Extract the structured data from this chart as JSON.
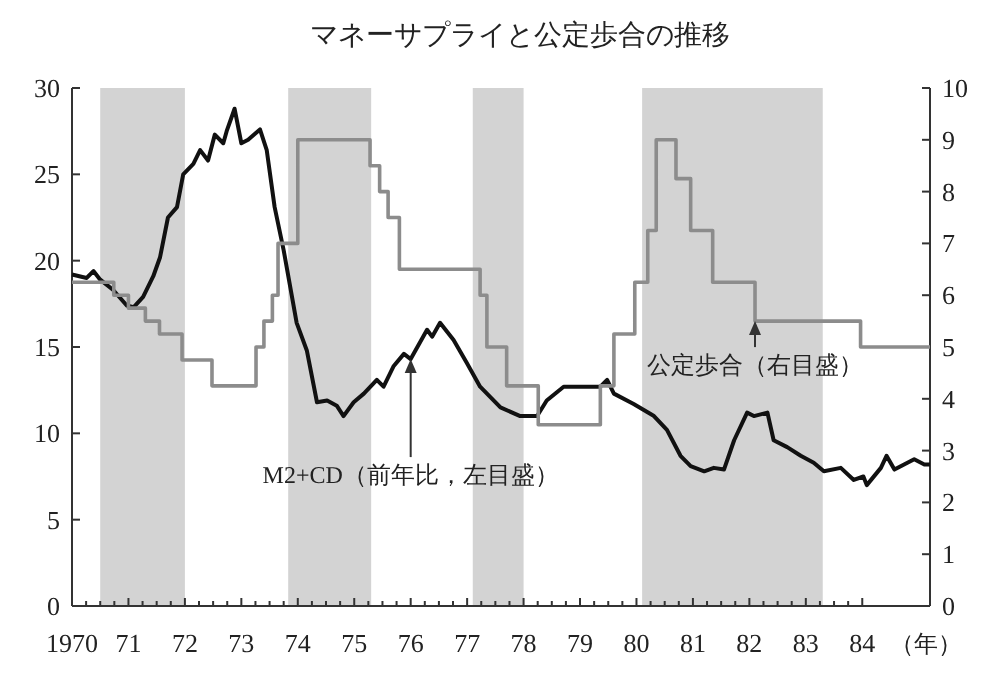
{
  "chart_data": {
    "type": "line",
    "title": "マネーサプライと公定歩合の推移",
    "xlabel": "（年）",
    "xlim": [
      1970,
      1985.2
    ],
    "xticks": [
      {
        "value": 1970,
        "label": "1970"
      },
      {
        "value": 1971,
        "label": "71"
      },
      {
        "value": 1972,
        "label": "72"
      },
      {
        "value": 1973,
        "label": "73"
      },
      {
        "value": 1974,
        "label": "74"
      },
      {
        "value": 1975,
        "label": "75"
      },
      {
        "value": 1976,
        "label": "76"
      },
      {
        "value": 1977,
        "label": "77"
      },
      {
        "value": 1978,
        "label": "78"
      },
      {
        "value": 1979,
        "label": "79"
      },
      {
        "value": 1980,
        "label": "80"
      },
      {
        "value": 1981,
        "label": "81"
      },
      {
        "value": 1982,
        "label": "82"
      },
      {
        "value": 1983,
        "label": "83"
      },
      {
        "value": 1984,
        "label": "84"
      }
    ],
    "ylim": [
      0,
      30
    ],
    "yticks": [
      0,
      5,
      10,
      15,
      20,
      25,
      30
    ],
    "y2lim": [
      0,
      10
    ],
    "y2ticks": [
      0,
      1,
      2,
      3,
      4,
      5,
      6,
      7,
      8,
      9,
      10
    ],
    "series": [
      {
        "color": "#111111",
        "x": [
          1970.0,
          1970.26,
          1970.38,
          1970.5,
          1970.73,
          1970.97,
          1971.09,
          1971.26,
          1971.44,
          1971.56,
          1971.7,
          1971.86,
          1971.97,
          1972.15,
          1972.27,
          1972.41,
          1972.53,
          1972.68,
          1972.74,
          1972.88,
          1973.0,
          1973.12,
          1973.33,
          1973.45,
          1973.59,
          1973.75,
          1973.98,
          1974.16,
          1974.34,
          1974.52,
          1974.69,
          1974.81,
          1974.99,
          1975.17,
          1975.4,
          1975.52,
          1975.7,
          1975.88,
          1976.0,
          1976.29,
          1976.38,
          1976.52,
          1976.76,
          1976.99,
          1977.23,
          1977.59,
          1977.94,
          1978.24,
          1978.41,
          1978.71,
          1979.0,
          1979.36,
          1979.48,
          1979.6,
          1979.95,
          1980.31,
          1980.54,
          1980.78,
          1980.96,
          1981.2,
          1981.37,
          1981.55,
          1981.73,
          1981.96,
          1982.08,
          1982.32,
          1982.43,
          1982.67,
          1982.91,
          1983.14,
          1983.32,
          1983.62,
          1983.85,
          1984.02,
          1984.08,
          1984.33,
          1984.43,
          1984.57,
          1984.92,
          1985.1,
          1985.2
        ],
        "values": [
          19.2,
          19.0,
          19.4,
          18.9,
          18.3,
          17.4,
          17.3,
          17.9,
          19.1,
          20.2,
          22.5,
          23.1,
          25.0,
          25.6,
          26.4,
          25.8,
          27.3,
          26.8,
          27.5,
          28.8,
          26.8,
          27.0,
          27.6,
          26.4,
          23.1,
          20.6,
          16.4,
          14.8,
          11.8,
          11.9,
          11.6,
          11.0,
          11.8,
          12.3,
          13.1,
          12.7,
          13.9,
          14.6,
          14.3,
          16.0,
          15.6,
          16.4,
          15.4,
          14.1,
          12.7,
          11.5,
          11.0,
          11.0,
          11.9,
          12.7,
          12.7,
          12.7,
          13.1,
          12.3,
          11.7,
          11.0,
          10.2,
          8.7,
          8.1,
          7.8,
          8.0,
          7.9,
          9.6,
          11.2,
          11.0,
          11.2,
          9.6,
          9.2,
          8.7,
          8.3,
          7.8,
          8.0,
          7.3,
          7.5,
          7.0,
          8.0,
          8.7,
          7.9,
          8.5,
          8.2,
          8.2
        ]
      },
      {
        "type": "step",
        "axis": "y2",
        "color": "#8c8c8c",
        "x": [
          1970.0,
          1970.74,
          1971.0,
          1971.3,
          1971.55,
          1971.95,
          1972.48,
          1973.26,
          1973.4,
          1973.55,
          1973.65,
          1974.0,
          1975.28,
          1975.45,
          1975.6,
          1975.8,
          1977.23,
          1977.35,
          1977.7,
          1978.26,
          1979.36,
          1979.6,
          1979.97,
          1980.2,
          1980.35,
          1980.7,
          1980.96,
          1981.35,
          1982.1,
          1983.97,
          1985.2
        ],
        "values": [
          6.25,
          6.0,
          5.75,
          5.5,
          5.25,
          4.75,
          4.25,
          5.0,
          5.5,
          6.0,
          7.0,
          9.0,
          8.5,
          8.0,
          7.5,
          6.5,
          6.0,
          5.0,
          4.25,
          3.5,
          4.25,
          5.25,
          6.25,
          7.25,
          9.0,
          8.25,
          7.25,
          6.25,
          5.5,
          5.0,
          5.0
        ]
      }
    ],
    "bands": [
      {
        "axis": "x",
        "from": 1970.5,
        "to": 1972.0,
        "color": "#d3d3d3"
      },
      {
        "axis": "x",
        "from": 1973.83,
        "to": 1975.3,
        "color": "#d3d3d3"
      },
      {
        "axis": "x",
        "from": 1977.1,
        "to": 1978.0,
        "color": "#d3d3d3"
      },
      {
        "axis": "x",
        "from": 1980.1,
        "to": 1983.3,
        "color": "#d3d3d3"
      }
    ],
    "annotations": [
      {
        "text": "M2+CD（前年比，左目盛）",
        "x": 1976.0,
        "y": 14.3
      },
      {
        "text": "公定歩合（右目盛）",
        "x": 1982.1,
        "y": 16.5
      }
    ]
  }
}
